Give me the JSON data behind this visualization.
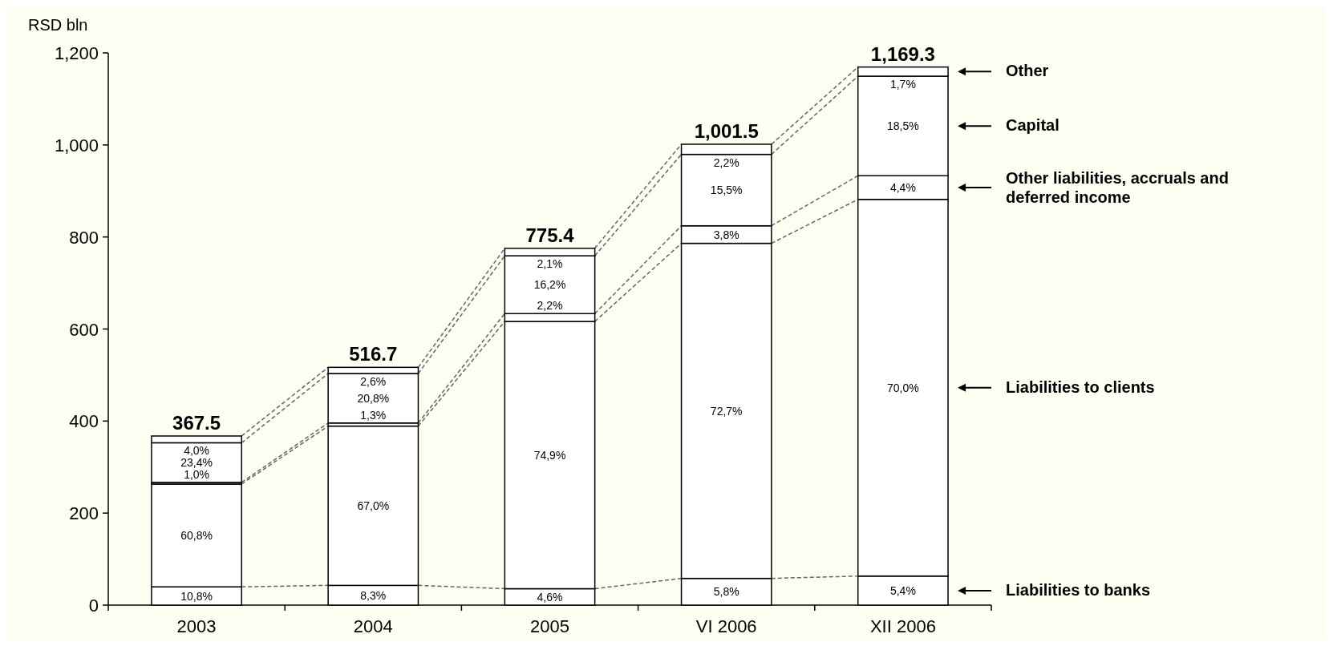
{
  "chart_data": {
    "type": "bar",
    "stacked": true,
    "ylabel": "RSD bln",
    "categories": [
      "2003",
      "2004",
      "2005",
      "VI 2006",
      "XII 2006"
    ],
    "ylim": [
      0,
      1200
    ],
    "yticks": [
      0,
      200,
      400,
      600,
      800,
      {
        "value": 1000,
        "label": "1,000"
      },
      {
        "value": 1200,
        "label": "1,200"
      }
    ],
    "legend": "right",
    "series": [
      {
        "name": "Liabilities to banks",
        "color": "#ffffff",
        "values": [
          39.7,
          42.9,
          35.7,
          58.1,
          63.1
        ]
      },
      {
        "name": "Liabilities to clients",
        "color": "#ffffff",
        "values": [
          223.4,
          346.2,
          580.7,
          728.1,
          818.6
        ]
      },
      {
        "name": "Other liabilities, accruals and deferred income",
        "color": "#ffffff",
        "values": [
          3.7,
          6.7,
          17.1,
          38.1,
          51.4
        ]
      },
      {
        "name": "Capital",
        "color": "#ffffff",
        "values": [
          86.0,
          107.5,
          125.6,
          155.2,
          216.3
        ]
      },
      {
        "name": "Other",
        "color": "#ffffff",
        "values": [
          14.7,
          13.4,
          16.3,
          22.0,
          19.9
        ]
      }
    ],
    "totals": [
      "367.5",
      "516.7",
      "775.4",
      "1,001.5",
      "1,169.3"
    ],
    "annotations": [
      "10,8%",
      "60,8%",
      "1,0%",
      "23,4%",
      "4,0%",
      "8,3%",
      "67,0%",
      "1,3%",
      "20,8%",
      "2,6%",
      "4,6%",
      "74,9%",
      "2,2%",
      "16,2%",
      "2,1%",
      "5,8%",
      "72,7%",
      "3,8%",
      "15,5%",
      "2,2%",
      "5,4%",
      "70,0%",
      "4,4%",
      "18,5%",
      "1,7%"
    ]
  }
}
